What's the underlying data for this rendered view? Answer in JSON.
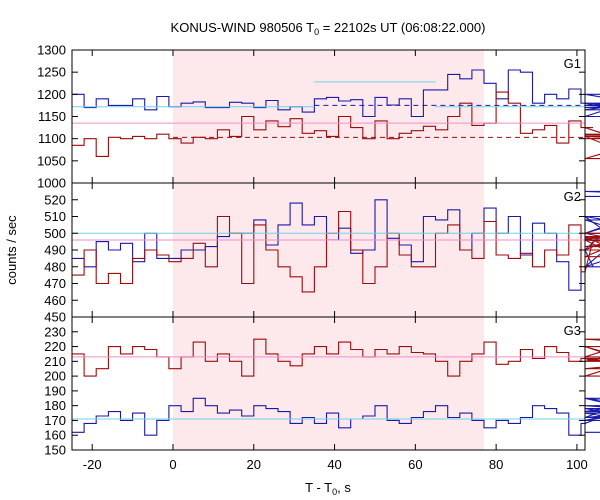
{
  "chart_data": {
    "type": "line",
    "title_main": "KONUS-WIND 980506 T",
    "title_sub": "0",
    "title_rest": " = 22102s UT (06:08:22.000)",
    "xlabel": "T - T",
    "xlabel_sub": "0",
    "xlabel_rest": ", s",
    "ylabel": "counts / sec",
    "xlim": [
      -25,
      102
    ],
    "x_ticks": [
      -20,
      0,
      20,
      40,
      60,
      80,
      100
    ],
    "shade_x": [
      0,
      77
    ],
    "colors": {
      "blue": "#1a1aa8",
      "red": "#9b0d0d",
      "cyan": "#6fd3e8",
      "pink": "#f08ec8",
      "shade": "#fde8ec"
    },
    "panels": [
      {
        "name": "G1",
        "ylim": [
          1000,
          1300
        ],
        "y_ticks": [
          1000,
          1050,
          1100,
          1150,
          1200,
          1250,
          1300
        ],
        "series": [
          {
            "color": "blue",
            "x0": -25,
            "step": 3.0,
            "values": [
              1200,
              1170,
              1190,
              1175,
              1175,
              1190,
              1165,
              1195,
              1172,
              1180,
              1183,
              1170,
              1170,
              1182,
              1180,
              1170,
              1186,
              1165,
              1172,
              1160,
              1190,
              1193,
              1185,
              1188,
              1150,
              1193,
              1176,
              1190,
              1150,
              1210,
              1210,
              1245,
              1235,
              1255,
              1225,
              1190,
              1255,
              1250,
              1180,
              1200,
              1190,
              1212,
              1180,
              1180,
              1180,
              1175,
              1180,
              1150,
              1200,
              1170,
              1175,
              1165,
              1200
            ]
          },
          {
            "color": "red",
            "x0": -25,
            "step": 3.0,
            "values": [
              1085,
              1100,
              1060,
              1103,
              1100,
              1105,
              1100,
              1110,
              1100,
              1090,
              1103,
              1100,
              1120,
              1105,
              1150,
              1120,
              1140,
              1127,
              1145,
              1112,
              1118,
              1105,
              1150,
              1125,
              1100,
              1140,
              1100,
              1112,
              1118,
              1128,
              1120,
              1150,
              1180,
              1130,
              1135,
              1205,
              1180,
              1112,
              1120,
              1130,
              1090,
              1140,
              1125,
              1125,
              1110,
              1110,
              1105,
              1055,
              1100,
              1108,
              1110,
              1105,
              1100
            ]
          }
        ],
        "hlines": [
          {
            "color": "cyan",
            "y": 1172,
            "x": [
              -25,
              35
            ]
          },
          {
            "color": "cyan",
            "y": 1228,
            "x": [
              35,
              65
            ]
          },
          {
            "color": "cyan",
            "y": 1172,
            "x": [
              65,
              102
            ]
          },
          {
            "color": "pink",
            "y": 1135,
            "x": [
              -25,
              102
            ]
          }
        ],
        "dashed": [
          {
            "color": "blue",
            "y": 1175,
            "x": [
              35,
              102
            ]
          },
          {
            "color": "red",
            "y": 1103,
            "x": [
              0,
              102
            ]
          }
        ]
      },
      {
        "name": "G2",
        "ylim": [
          450,
          530
        ],
        "y_ticks": [
          450,
          460,
          470,
          480,
          490,
          500,
          510,
          520
        ],
        "series": [
          {
            "color": "blue",
            "x0": -25,
            "step": 3.0,
            "values": [
              485,
              480,
              495,
              490,
              494,
              483,
              500,
              485,
              485,
              490,
              490,
              492,
              498,
              500,
              500,
              508,
              493,
              505,
              518,
              505,
              510,
              496,
              503,
              488,
              490,
              520,
              497,
              493,
              483,
              510,
              508,
              514,
              490,
              500,
              515,
              500,
              510,
              487,
              506,
              500,
              483,
              466,
              490,
              480,
              490,
              508,
              500,
              510,
              480,
              496,
              510,
              500,
              525,
              522
            ]
          },
          {
            "color": "red",
            "x0": -25,
            "step": 3.0,
            "values": [
              475,
              490,
              470,
              476,
              470,
              485,
              490,
              487,
              483,
              485,
              494,
              480,
              510,
              500,
              470,
              505,
              490,
              480,
              474,
              465,
              480,
              500,
              513,
              490,
              470,
              480,
              500,
              487,
              480,
              480,
              500,
              505,
              490,
              485,
              507,
              487,
              485,
              488,
              480,
              490,
              487,
              505,
              477,
              496,
              490,
              498,
              486,
              500,
              492,
              497,
              498,
              492,
              496,
              490
            ]
          }
        ],
        "hlines": [
          {
            "color": "cyan",
            "y": 500,
            "x": [
              -25,
              102
            ]
          },
          {
            "color": "pink",
            "y": 496,
            "x": [
              -25,
              102
            ]
          }
        ]
      },
      {
        "name": "G3",
        "ylim": [
          150,
          240
        ],
        "y_ticks": [
          150,
          160,
          170,
          180,
          190,
          200,
          210,
          220,
          230
        ],
        "series": [
          {
            "color": "red",
            "x0": -25,
            "step": 3.0,
            "values": [
              215,
              200,
              205,
              220,
              215,
              220,
              218,
              213,
              205,
              213,
              223,
              210,
              215,
              210,
              200,
              225,
              215,
              210,
              207,
              215,
              220,
              215,
              223,
              218,
              213,
              218,
              215,
              220,
              216,
              215,
              210,
              200,
              210,
              215,
              223,
              208,
              210,
              218,
              212,
              220,
              216,
              210,
              212,
              210,
              213,
              220,
              210,
              212,
              205,
              210,
              220,
              200,
              225,
              220
            ]
          },
          {
            "color": "blue",
            "x0": -25,
            "step": 3.0,
            "values": [
              162,
              168,
              173,
              176,
              170,
              175,
              160,
              170,
              180,
              176,
              185,
              180,
              175,
              177,
              173,
              180,
              178,
              176,
              168,
              172,
              168,
              175,
              165,
              171,
              173,
              180,
              170,
              168,
              172,
              176,
              180,
              172,
              175,
              170,
              165,
              170,
              168,
              172,
              180,
              178,
              175,
              160,
              168,
              170,
              172,
              180,
              178,
              172,
              176,
              185,
              170,
              185,
              175,
              162
            ]
          }
        ],
        "hlines": [
          {
            "color": "cyan",
            "y": 171,
            "x": [
              -25,
              102
            ]
          },
          {
            "color": "pink",
            "y": 213,
            "x": [
              -25,
              102
            ]
          }
        ]
      }
    ]
  }
}
